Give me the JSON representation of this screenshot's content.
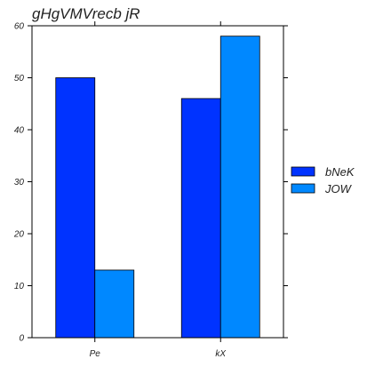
{
  "chart_data": {
    "type": "bar",
    "title": "gHgVMVrecb jR",
    "xlabel": "",
    "ylabel": "",
    "categories": [
      "Pe",
      "kX"
    ],
    "series": [
      {
        "name": "bNeK",
        "values": [
          50,
          46
        ],
        "color": "#0033ff"
      },
      {
        "name": "JOW",
        "values": [
          13,
          58
        ],
        "color": "#0088ff"
      }
    ],
    "ylim": [
      0,
      60
    ],
    "yticks": [
      0,
      10,
      20,
      30,
      40,
      50,
      60
    ],
    "grid": false,
    "legend_position": "right"
  }
}
